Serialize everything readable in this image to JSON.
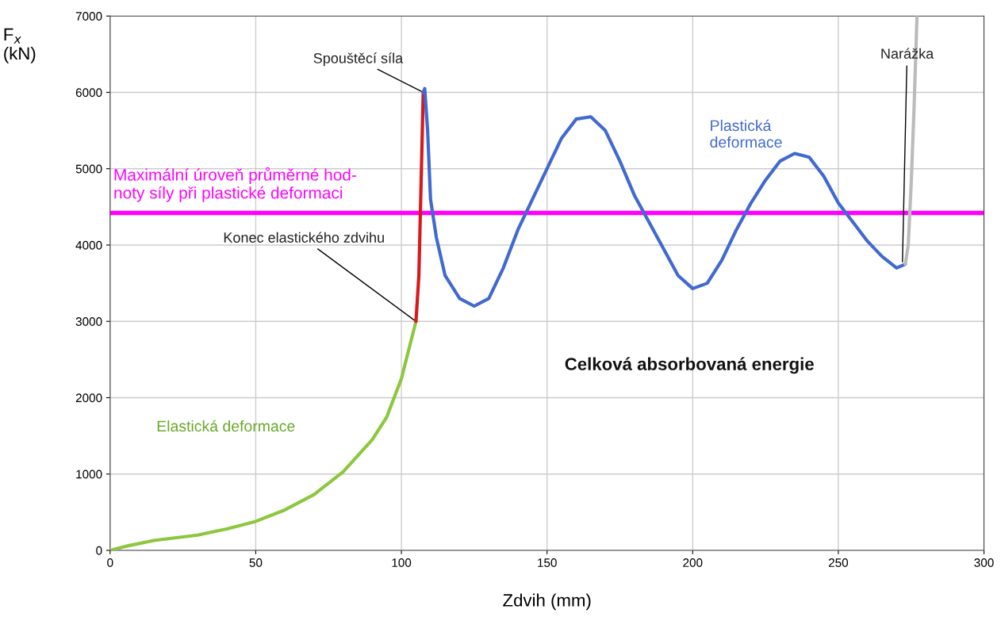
{
  "chart_data": {
    "type": "line",
    "xlabel": "Zdvih (mm)",
    "ylabel": "F$_{x}$\n(kN)",
    "xlim": [
      0,
      300
    ],
    "ylim": [
      0,
      7000
    ],
    "xticks": [
      0,
      50,
      100,
      150,
      200,
      250,
      300
    ],
    "yticks": [
      0,
      1000,
      2000,
      3000,
      4000,
      5000,
      6000,
      7000
    ],
    "grid": true,
    "series": [
      {
        "color": "#8dc63f",
        "x": [
          0,
          5,
          15,
          30,
          40,
          50,
          60,
          70,
          80,
          90,
          95,
          100,
          102,
          104,
          105
        ],
        "values": [
          0,
          50,
          130,
          200,
          280,
          380,
          530,
          730,
          1030,
          1450,
          1750,
          2250,
          2550,
          2850,
          3000
        ]
      },
      {
        "color": "#d7191c",
        "x": [
          105,
          106,
          106.5,
          107,
          107.5
        ],
        "values": [
          3000,
          3600,
          4400,
          5200,
          6000
        ]
      },
      {
        "color": "#4169d0",
        "x": [
          107.5,
          108,
          109,
          110,
          112,
          115,
          120,
          125,
          130,
          135,
          140,
          145,
          150,
          155,
          160,
          165,
          170,
          175,
          180,
          185,
          190,
          195,
          200,
          205,
          210,
          215,
          220,
          225,
          230,
          235,
          240,
          245,
          250,
          255,
          260,
          265,
          270,
          273
        ],
        "values": [
          6000,
          6050,
          5500,
          4600,
          4100,
          3600,
          3300,
          3200,
          3300,
          3700,
          4200,
          4600,
          5000,
          5400,
          5650,
          5680,
          5500,
          5100,
          4650,
          4300,
          3950,
          3600,
          3430,
          3500,
          3800,
          4200,
          4550,
          4850,
          5100,
          5200,
          5150,
          4900,
          4550,
          4300,
          4050,
          3850,
          3700,
          3750
        ]
      },
      {
        "color": "#bbbbbb",
        "x": [
          273,
          274,
          275,
          276,
          277
        ],
        "values": [
          3750,
          4000,
          4800,
          5800,
          7000
        ]
      }
    ],
    "ref_lines": [
      {
        "axis": "y",
        "value": 4420,
        "color": "#ff00ff",
        "label": "Maximální úroveň průměrné hod-\nnoty síly při plastické deformaci"
      }
    ],
    "annotations": [
      {
        "text": "Spouštěcí síla",
        "x": 107.5,
        "y": 6000
      },
      {
        "text": "Konec elastického zdvihu",
        "x": 105,
        "y": 3000
      },
      {
        "text": "Narážka",
        "x": 272,
        "y": 3750
      },
      "Plastická\ndeformace",
      "Elastická deformace",
      "Celková absorbovaná energie"
    ]
  }
}
